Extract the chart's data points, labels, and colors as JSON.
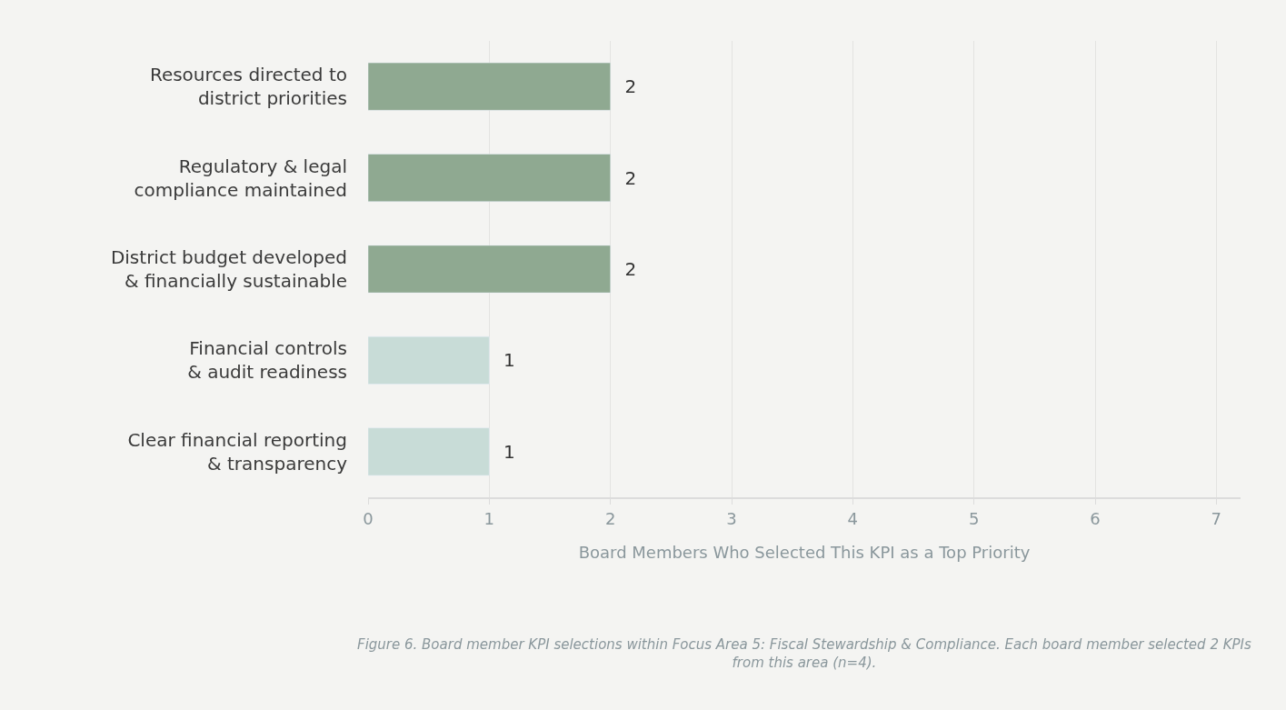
{
  "chart_data": {
    "type": "bar",
    "orientation": "horizontal",
    "categories": [
      "Resources directed to\ndistrict priorities",
      "Regulatory & legal\ncompliance maintained",
      "District budget developed\n& financially sustainable",
      "Financial controls\n& audit readiness",
      "Clear financial reporting\n& transparency"
    ],
    "values": [
      2,
      2,
      2,
      1,
      1
    ],
    "colors": [
      "#8fa991",
      "#8fa991",
      "#8fa991",
      "#c8dcd7",
      "#c8dcd7"
    ],
    "xlabel": "Board Members Who Selected This KPI as a Top Priority",
    "xlim": [
      0,
      7.2
    ],
    "xticks": [
      0,
      1,
      2,
      3,
      4,
      5,
      6,
      7
    ],
    "grid": "x",
    "data_labels": true,
    "annotations": [
      "Figure 6. Board member KPI selections within Focus Area 5: Fiscal Stewardship & Compliance. Each board member selected 2 KPIs\nfrom this area (n=4)."
    ]
  }
}
